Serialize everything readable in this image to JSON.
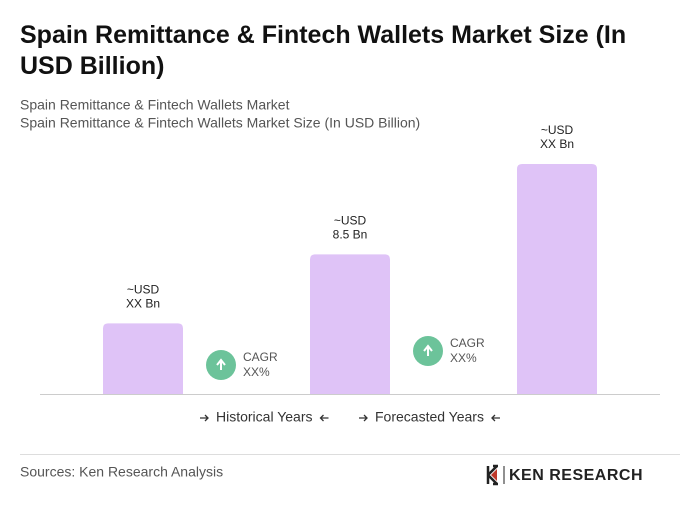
{
  "title": "Spain Remittance & Fintech Wallets Market Size (In USD Billion)",
  "subtitle_lines": [
    "Spain Remittance & Fintech Wallets Market",
    "Spain Remittance & Fintech Wallets Market Size (In USD Billion)"
  ],
  "chart_data": {
    "type": "bar",
    "categories": [
      null,
      null,
      null
    ],
    "values": [
      4.3,
      8.5,
      14
    ],
    "value_labels": [
      [
        "~USD",
        "XX Bn"
      ],
      [
        "~USD",
        "8.5 Bn"
      ],
      [
        "~USD",
        "XX Bn"
      ]
    ],
    "color": "#dfc3f7",
    "annotations": [
      [
        "CAGR",
        "XX%"
      ],
      [
        "CAGR",
        "XX%"
      ]
    ],
    "periods": [
      "Historical Years",
      "Forecasted Years"
    ]
  },
  "source": "Sources: Ken Research Analysis",
  "logo": "KEN RESEARCH"
}
